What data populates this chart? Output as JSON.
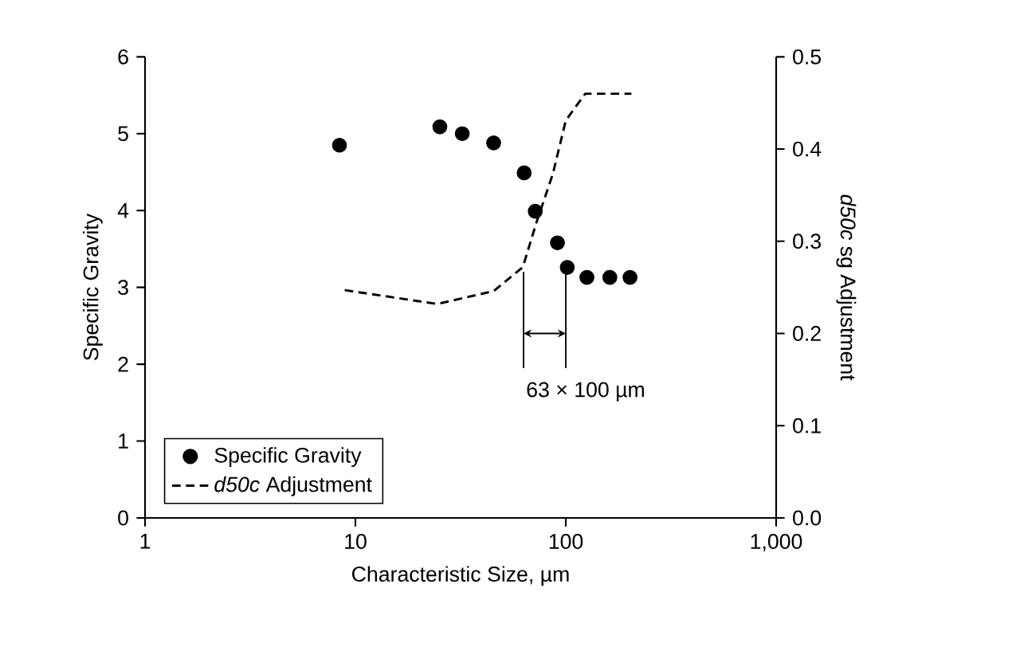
{
  "chart_data": {
    "type": "scatter",
    "xlabel": "Characteristic Size, µm",
    "ylabel": "Specific Gravity",
    "y2label": "*d50c* sg Adjustment",
    "log": "x",
    "xlim": [
      1,
      1000
    ],
    "xticks": [
      1,
      10,
      100,
      {
        "value": 1000,
        "label": "1,000"
      }
    ],
    "ylim": [
      0,
      6
    ],
    "yticks": [
      0,
      1,
      2,
      3,
      4,
      5,
      6
    ],
    "y2lim": [
      0,
      0.5
    ],
    "y2ticks": [
      {
        "value": 0,
        "label": "0.0"
      },
      0.1,
      0.2,
      0.3,
      0.4,
      0.5
    ],
    "legend": "bottom left",
    "series": [
      {
        "name": "Specific Gravity",
        "type": "scatter",
        "color": "#000000",
        "marker": "circle",
        "x": [
          8.4,
          25.2,
          32.2,
          45.4,
          63.4,
          71.6,
          91.3,
          101.6,
          126,
          162,
          202
        ],
        "values": [
          4.85,
          5.09,
          5.0,
          4.88,
          4.49,
          3.99,
          3.58,
          3.26,
          3.13,
          3.13,
          3.13
        ]
      },
      {
        "name": "*d50c* Adjustment",
        "type": "line",
        "axis": "y2",
        "color": "#000000",
        "line_style": "dashed",
        "marker": "none",
        "x": [
          8.9,
          24.5,
          45.4,
          62.5,
          72.7,
          86.8,
          100,
          123.7,
          205
        ],
        "values": [
          0.247,
          0.232,
          0.246,
          0.272,
          0.321,
          0.373,
          0.431,
          0.46,
          0.46
        ]
      }
    ],
    "ref_lines": [
      {
        "axis": "x",
        "value": 63,
        "label": "63 × 100 µm"
      },
      {
        "axis": "x",
        "value": 100
      }
    ]
  }
}
